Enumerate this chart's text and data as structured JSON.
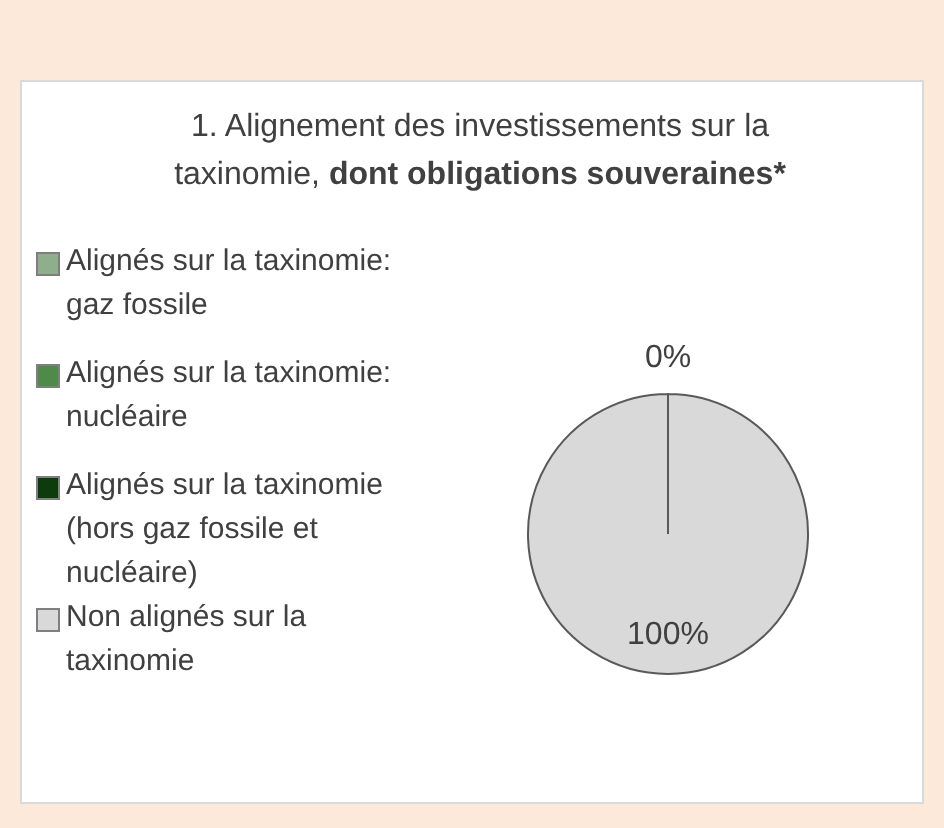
{
  "chart_data": {
    "type": "pie",
    "title": "1. Alignement des investissements sur la taxinomie, dont obligations souveraines*",
    "categories": [
      "Alignés sur la taxinomie: gaz fossile",
      "Alignés sur la taxinomie: nucléaire",
      "Alignés sur la taxinomie (hors gaz fossile et nucléaire)",
      "Non alignés sur la taxinomie"
    ],
    "values": [
      0,
      0,
      0,
      100
    ],
    "colors": [
      "#8fae8b",
      "#4f8a4b",
      "#0d3b0d",
      "#d9d9d9"
    ],
    "value_labels": [
      "0%",
      null,
      null,
      "100%"
    ],
    "legend": "left"
  }
}
